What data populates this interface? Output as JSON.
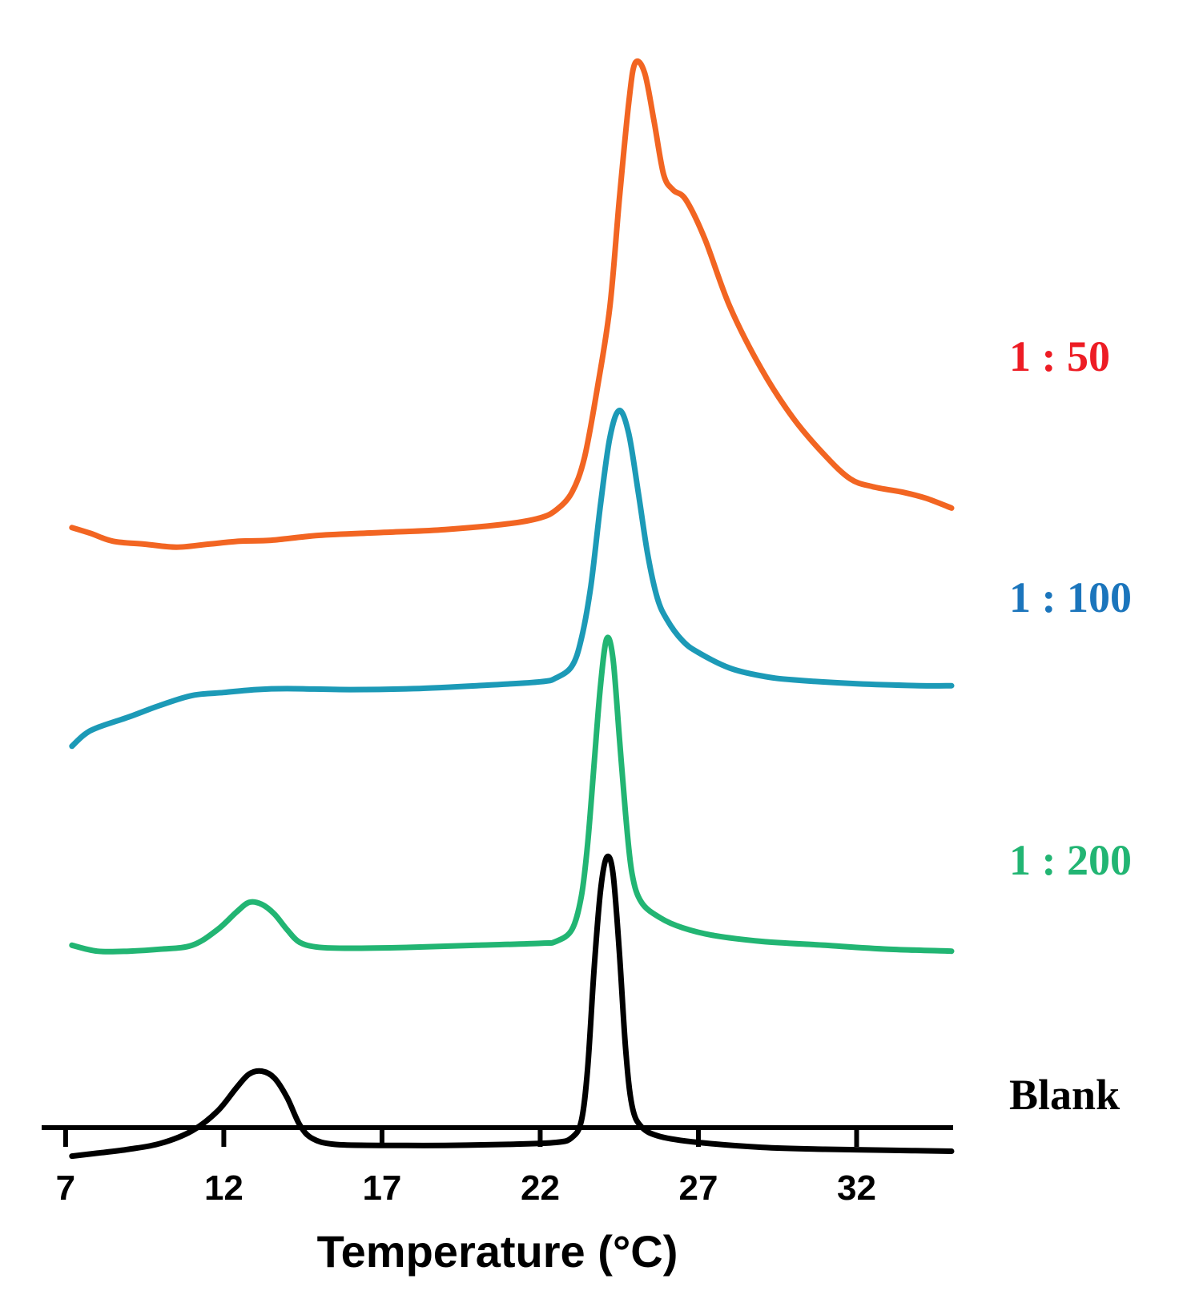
{
  "chart_data": {
    "type": "line",
    "title": "",
    "xlabel": "Temperature (°C)",
    "ylabel": "",
    "xlim": [
      6.8,
      35.0
    ],
    "xticks": [
      7,
      12,
      17,
      22,
      27,
      32
    ],
    "yaxis_visible": false,
    "series": [
      {
        "name": "Blank",
        "label": "Blank",
        "color": "#000000",
        "offset": 0,
        "points": [
          [
            7.2,
            0.0
          ],
          [
            8.0,
            0.15
          ],
          [
            9.0,
            0.35
          ],
          [
            10.0,
            0.65
          ],
          [
            11.0,
            1.3
          ],
          [
            11.8,
            2.3
          ],
          [
            12.4,
            3.5
          ],
          [
            12.8,
            4.2
          ],
          [
            13.2,
            4.35
          ],
          [
            13.6,
            4.0
          ],
          [
            14.0,
            3.0
          ],
          [
            14.4,
            1.6
          ],
          [
            14.8,
            0.9
          ],
          [
            15.5,
            0.6
          ],
          [
            17.0,
            0.55
          ],
          [
            19.0,
            0.55
          ],
          [
            21.0,
            0.6
          ],
          [
            22.5,
            0.7
          ],
          [
            23.0,
            0.95
          ],
          [
            23.3,
            1.8
          ],
          [
            23.5,
            4.5
          ],
          [
            23.7,
            9.5
          ],
          [
            23.9,
            13.5
          ],
          [
            24.1,
            15.3
          ],
          [
            24.3,
            14.5
          ],
          [
            24.5,
            10.5
          ],
          [
            24.7,
            5.5
          ],
          [
            24.9,
            2.6
          ],
          [
            25.2,
            1.5
          ],
          [
            25.8,
            1.0
          ],
          [
            27.0,
            0.7
          ],
          [
            29.0,
            0.45
          ],
          [
            31.0,
            0.35
          ],
          [
            33.0,
            0.3
          ],
          [
            35.0,
            0.25
          ]
        ]
      },
      {
        "name": "1 : 200",
        "label": "1 : 200",
        "color": "#22B573",
        "offset": 10.5,
        "points": [
          [
            7.2,
            0.3
          ],
          [
            8.0,
            0.0
          ],
          [
            9.0,
            0.0
          ],
          [
            10.0,
            0.1
          ],
          [
            11.0,
            0.3
          ],
          [
            11.8,
            1.1
          ],
          [
            12.4,
            2.0
          ],
          [
            12.8,
            2.5
          ],
          [
            13.2,
            2.4
          ],
          [
            13.6,
            1.9
          ],
          [
            14.0,
            1.1
          ],
          [
            14.4,
            0.45
          ],
          [
            15.0,
            0.2
          ],
          [
            16.0,
            0.15
          ],
          [
            18.0,
            0.2
          ],
          [
            20.0,
            0.3
          ],
          [
            22.0,
            0.4
          ],
          [
            22.5,
            0.5
          ],
          [
            23.0,
            1.1
          ],
          [
            23.3,
            2.8
          ],
          [
            23.5,
            5.5
          ],
          [
            23.7,
            9.5
          ],
          [
            23.9,
            13.5
          ],
          [
            24.1,
            16.0
          ],
          [
            24.3,
            15.0
          ],
          [
            24.5,
            11.0
          ],
          [
            24.7,
            7.0
          ],
          [
            24.9,
            4.0
          ],
          [
            25.2,
            2.5
          ],
          [
            25.8,
            1.7
          ],
          [
            26.5,
            1.2
          ],
          [
            27.5,
            0.8
          ],
          [
            29.0,
            0.5
          ],
          [
            31.0,
            0.3
          ],
          [
            33.0,
            0.1
          ],
          [
            35.0,
            0.0
          ]
        ]
      },
      {
        "name": "1 : 100",
        "label": "1 : 100",
        "color": "#1C9AB7",
        "offset": 21.0,
        "points": [
          [
            7.2,
            0.0
          ],
          [
            7.6,
            0.6
          ],
          [
            8.0,
            0.95
          ],
          [
            9.0,
            1.5
          ],
          [
            10.0,
            2.1
          ],
          [
            11.0,
            2.6
          ],
          [
            12.0,
            2.75
          ],
          [
            13.0,
            2.9
          ],
          [
            14.0,
            2.95
          ],
          [
            16.0,
            2.9
          ],
          [
            18.0,
            2.95
          ],
          [
            20.0,
            3.1
          ],
          [
            22.0,
            3.3
          ],
          [
            22.5,
            3.5
          ],
          [
            23.0,
            4.1
          ],
          [
            23.3,
            5.5
          ],
          [
            23.6,
            8.2
          ],
          [
            23.9,
            12.3
          ],
          [
            24.2,
            15.8
          ],
          [
            24.5,
            17.2
          ],
          [
            24.8,
            16.0
          ],
          [
            25.1,
            13.0
          ],
          [
            25.4,
            9.8
          ],
          [
            25.7,
            7.6
          ],
          [
            26.0,
            6.5
          ],
          [
            26.5,
            5.4
          ],
          [
            27.0,
            4.8
          ],
          [
            28.0,
            4.0
          ],
          [
            29.0,
            3.6
          ],
          [
            30.0,
            3.4
          ],
          [
            32.0,
            3.2
          ],
          [
            34.0,
            3.1
          ],
          [
            35.0,
            3.1
          ]
        ]
      },
      {
        "name": "1 : 50",
        "label": "1 : 50",
        "color": "#F26522",
        "offset": 31.5,
        "points": [
          [
            7.2,
            0.7
          ],
          [
            7.8,
            0.4
          ],
          [
            8.5,
            0.0
          ],
          [
            9.5,
            -0.15
          ],
          [
            10.5,
            -0.3
          ],
          [
            11.5,
            -0.15
          ],
          [
            12.5,
            0.0
          ],
          [
            13.5,
            0.05
          ],
          [
            15.0,
            0.3
          ],
          [
            17.0,
            0.45
          ],
          [
            19.0,
            0.6
          ],
          [
            21.0,
            0.9
          ],
          [
            22.0,
            1.2
          ],
          [
            22.5,
            1.6
          ],
          [
            23.0,
            2.5
          ],
          [
            23.4,
            4.3
          ],
          [
            23.8,
            7.8
          ],
          [
            24.2,
            12.0
          ],
          [
            24.5,
            17.5
          ],
          [
            24.8,
            22.5
          ],
          [
            25.0,
            24.5
          ],
          [
            25.3,
            24.0
          ],
          [
            25.6,
            21.5
          ],
          [
            25.9,
            18.8
          ],
          [
            26.2,
            18.0
          ],
          [
            26.6,
            17.5
          ],
          [
            27.2,
            15.5
          ],
          [
            28.0,
            12.0
          ],
          [
            29.0,
            8.8
          ],
          [
            30.0,
            6.3
          ],
          [
            31.0,
            4.4
          ],
          [
            31.8,
            3.2
          ],
          [
            32.5,
            2.8
          ],
          [
            33.5,
            2.5
          ],
          [
            34.2,
            2.2
          ],
          [
            35.0,
            1.7
          ]
        ]
      }
    ]
  }
}
